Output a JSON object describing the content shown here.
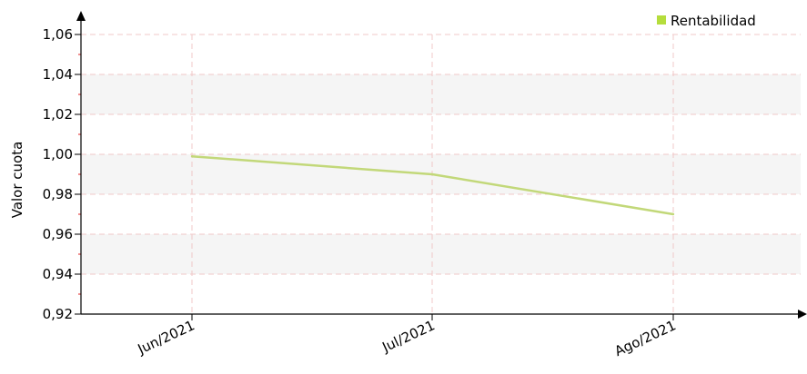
{
  "chart_data": {
    "type": "line",
    "ylabel": "Valor cuota",
    "xlabel": "",
    "categories": [
      "Jun/2021",
      "Jul/2021",
      "Ago/2021"
    ],
    "series": [
      {
        "name": "Rentabilidad",
        "values": [
          0.999,
          0.99,
          0.97
        ]
      }
    ],
    "ylim": [
      0.92,
      1.06
    ],
    "yticks": [
      "0,92",
      "0,94",
      "0,96",
      "0,98",
      "1,00",
      "1,02",
      "1,04",
      "1,06"
    ],
    "grid": true,
    "legend": "top-right",
    "colors": {
      "series": "#c2d879",
      "band": "#f5f5f5",
      "grid": "#f0c8c8",
      "axis": "#000000",
      "minor_tick": "#e02020",
      "legend_marker": "#b5dd3c"
    }
  }
}
